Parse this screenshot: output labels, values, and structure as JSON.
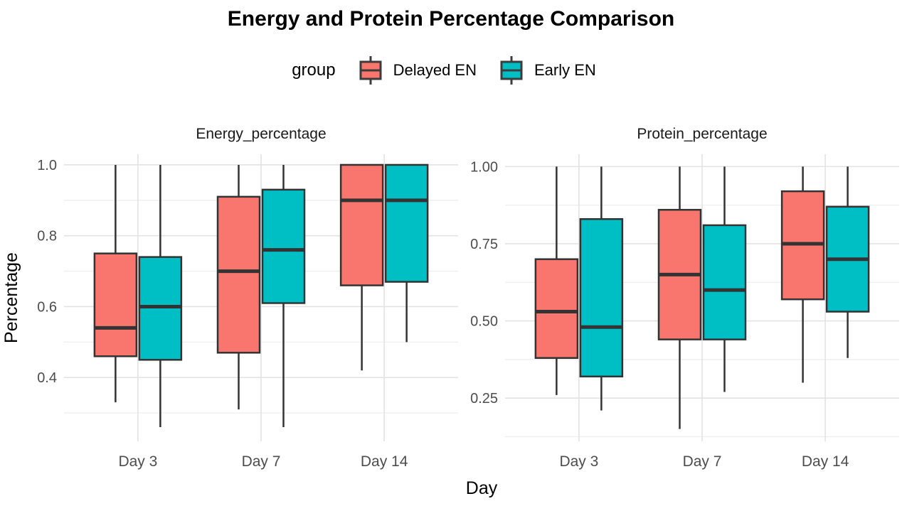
{
  "chart_data": {
    "type": "boxplot",
    "title": "Energy and Protein Percentage Comparison",
    "legend": {
      "title": "group",
      "position": "top",
      "entries": [
        {
          "label": "Delayed EN",
          "color": "#F8766D"
        },
        {
          "label": "Early EN",
          "color": "#00BFC4"
        }
      ]
    },
    "xlabel": "Day",
    "ylabel": "Percentage",
    "categories": [
      "Day 3",
      "Day 7",
      "Day 14"
    ],
    "facets": [
      {
        "title": "Energy_percentage",
        "ylim": [
          0.22,
          1.03
        ],
        "yticks": [
          {
            "value": 1.0,
            "label": "1.0"
          },
          {
            "value": 0.8,
            "label": "0.8"
          },
          {
            "value": 0.6,
            "label": "0.6"
          },
          {
            "value": 0.4,
            "label": "0.4"
          }
        ],
        "yminor": [
          0.9,
          0.7,
          0.5,
          0.3
        ],
        "series": [
          {
            "name": "Delayed EN",
            "color": "#F8766D",
            "boxes": [
              {
                "category": "Day 3",
                "whisker_low": 0.33,
                "q1": 0.46,
                "median": 0.54,
                "q3": 0.75,
                "whisker_high": 1.0
              },
              {
                "category": "Day 7",
                "whisker_low": 0.31,
                "q1": 0.47,
                "median": 0.7,
                "q3": 0.91,
                "whisker_high": 1.0
              },
              {
                "category": "Day 14",
                "whisker_low": 0.42,
                "q1": 0.66,
                "median": 0.9,
                "q3": 1.0,
                "whisker_high": 1.0
              }
            ]
          },
          {
            "name": "Early EN",
            "color": "#00BFC4",
            "boxes": [
              {
                "category": "Day 3",
                "whisker_low": 0.26,
                "q1": 0.45,
                "median": 0.6,
                "q3": 0.74,
                "whisker_high": 1.0
              },
              {
                "category": "Day 7",
                "whisker_low": 0.26,
                "q1": 0.61,
                "median": 0.76,
                "q3": 0.93,
                "whisker_high": 1.0
              },
              {
                "category": "Day 14",
                "whisker_low": 0.5,
                "q1": 0.67,
                "median": 0.9,
                "q3": 1.0,
                "whisker_high": 1.0
              }
            ]
          }
        ]
      },
      {
        "title": "Protein_percentage",
        "ylim": [
          0.11,
          1.04
        ],
        "yticks": [
          {
            "value": 1.0,
            "label": "1.00"
          },
          {
            "value": 0.75,
            "label": "0.75"
          },
          {
            "value": 0.5,
            "label": "0.50"
          },
          {
            "value": 0.25,
            "label": "0.25"
          }
        ],
        "yminor": [
          0.875,
          0.625,
          0.375,
          0.125
        ],
        "series": [
          {
            "name": "Delayed EN",
            "color": "#F8766D",
            "boxes": [
              {
                "category": "Day 3",
                "whisker_low": 0.26,
                "q1": 0.38,
                "median": 0.53,
                "q3": 0.7,
                "whisker_high": 1.0
              },
              {
                "category": "Day 7",
                "whisker_low": 0.15,
                "q1": 0.44,
                "median": 0.65,
                "q3": 0.86,
                "whisker_high": 1.0
              },
              {
                "category": "Day 14",
                "whisker_low": 0.3,
                "q1": 0.57,
                "median": 0.75,
                "q3": 0.92,
                "whisker_high": 1.0
              }
            ]
          },
          {
            "name": "Early EN",
            "color": "#00BFC4",
            "boxes": [
              {
                "category": "Day 3",
                "whisker_low": 0.21,
                "q1": 0.32,
                "median": 0.48,
                "q3": 0.83,
                "whisker_high": 1.0
              },
              {
                "category": "Day 7",
                "whisker_low": 0.27,
                "q1": 0.44,
                "median": 0.6,
                "q3": 0.81,
                "whisker_high": 1.0
              },
              {
                "category": "Day 14",
                "whisker_low": 0.38,
                "q1": 0.53,
                "median": 0.7,
                "q3": 0.87,
                "whisker_high": 1.0
              }
            ]
          }
        ]
      }
    ],
    "style": {
      "box_border": "#333333",
      "grid_major": "#e3e3e3",
      "grid_minor": "#efefef",
      "tick_text": "#4d4d4d",
      "facet_title_color": "#1a1a1a",
      "axis_title_color": "#000000",
      "background": "#ffffff"
    }
  }
}
